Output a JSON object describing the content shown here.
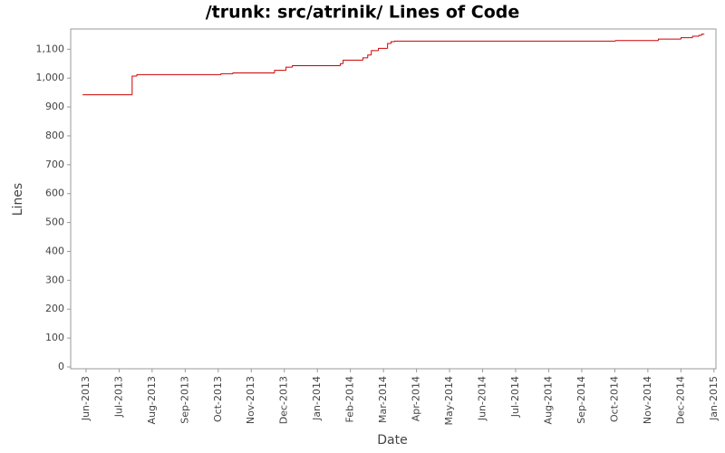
{
  "chart_data": {
    "type": "line",
    "step": "post",
    "title": "/trunk: src/atrinik/ Lines of Code",
    "x_label": "Date",
    "y_label": "Lines",
    "x": [
      2013.408,
      2013.533,
      2013.545,
      2013.757,
      2013.787,
      2013.892,
      2013.921,
      2013.937,
      2014.058,
      2014.065,
      2014.115,
      2014.127,
      2014.136,
      2014.154,
      2014.177,
      2014.186,
      2014.195,
      2014.752,
      2014.86,
      2014.917,
      2014.946,
      2014.962,
      2014.969
    ],
    "series": [
      {
        "name": "Lines",
        "color": "#cc0000",
        "values": [
          942,
          1007,
          1012,
          1015,
          1018,
          1027,
          1038,
          1043,
          1050,
          1062,
          1070,
          1080,
          1095,
          1103,
          1120,
          1126,
          1128,
          1130,
          1135,
          1140,
          1145,
          1148,
          1152
        ]
      }
    ],
    "xlim": [
      2013.378,
      2015.005
    ],
    "xticks": [
      {
        "value": 2013.4167,
        "label": "Jun-2013"
      },
      {
        "value": 2013.5,
        "label": "Jul-2013"
      },
      {
        "value": 2013.5833,
        "label": "Aug-2013"
      },
      {
        "value": 2013.6667,
        "label": "Sep-2013"
      },
      {
        "value": 2013.75,
        "label": "Oct-2013"
      },
      {
        "value": 2013.8333,
        "label": "Nov-2013"
      },
      {
        "value": 2013.9167,
        "label": "Dec-2013"
      },
      {
        "value": 2014.0,
        "label": "Jan-2014"
      },
      {
        "value": 2014.0833,
        "label": "Feb-2014"
      },
      {
        "value": 2014.1667,
        "label": "Mar-2014"
      },
      {
        "value": 2014.25,
        "label": "Apr-2014"
      },
      {
        "value": 2014.3333,
        "label": "May-2014"
      },
      {
        "value": 2014.4167,
        "label": "Jun-2014"
      },
      {
        "value": 2014.5,
        "label": "Jul-2014"
      },
      {
        "value": 2014.5833,
        "label": "Aug-2014"
      },
      {
        "value": 2014.6667,
        "label": "Sep-2014"
      },
      {
        "value": 2014.75,
        "label": "Oct-2014"
      },
      {
        "value": 2014.8333,
        "label": "Nov-2014"
      },
      {
        "value": 2014.9167,
        "label": "Dec-2014"
      },
      {
        "value": 2015.0,
        "label": "Jan-2015"
      }
    ],
    "ylim": [
      0,
      1170
    ],
    "yticks": [
      0,
      100,
      200,
      300,
      400,
      500,
      600,
      700,
      800,
      900,
      {
        "value": 1000,
        "label": "1,000"
      },
      {
        "value": 1100,
        "label": "1,100"
      }
    ],
    "grid": false
  }
}
